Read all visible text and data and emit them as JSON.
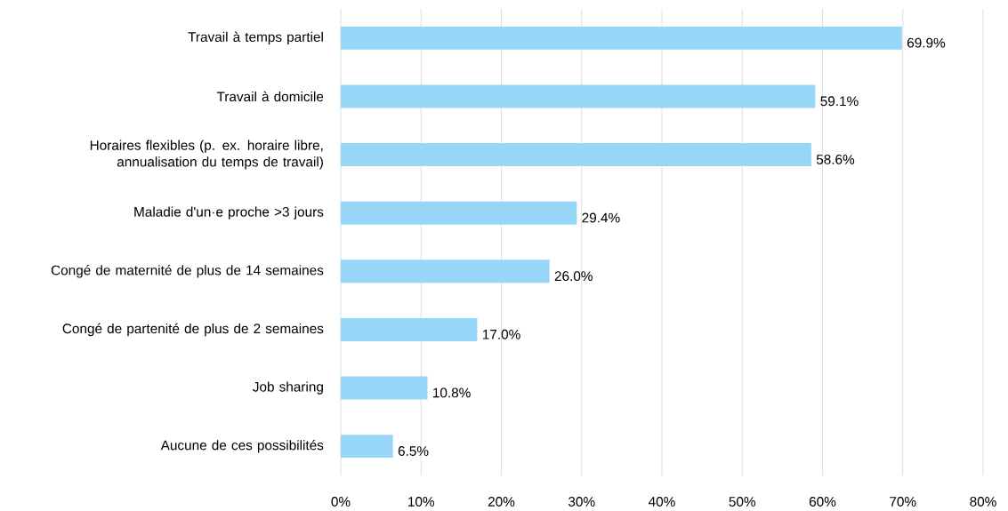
{
  "chart_data": {
    "type": "bar",
    "orientation": "horizontal",
    "categories": [
      "Travail à temps partiel",
      "Travail à domicile",
      "Horaires flexibles (p. ex. horaire libre, annualisation du temps de travail)",
      "Maladie d'un·e proche >3 jours",
      "Congé de maternité de plus de 14 semaines",
      "Congé de partenité de plus de 2 semaines",
      "Job sharing",
      "Aucune de ces possibilités"
    ],
    "values": [
      69.9,
      59.1,
      58.6,
      29.4,
      26.0,
      17.0,
      10.8,
      6.5
    ],
    "value_labels": [
      "69.9%",
      "59.1%",
      "58.6%",
      "29.4%",
      "26.0%",
      "17.0%",
      "10.8%",
      "6.5%"
    ],
    "color": "#97d6f7",
    "xlim": [
      0,
      80
    ],
    "xticks": [
      {
        "value": 0,
        "label": "0%"
      },
      {
        "value": 10,
        "label": "10%"
      },
      {
        "value": 20,
        "label": "20%"
      },
      {
        "value": 30,
        "label": "30%"
      },
      {
        "value": 40,
        "label": "40%"
      },
      {
        "value": 50,
        "label": "50%"
      },
      {
        "value": 60,
        "label": "60%"
      },
      {
        "value": 70,
        "label": "70%"
      },
      {
        "value": 80,
        "label": "80%"
      }
    ],
    "grid": "x"
  }
}
